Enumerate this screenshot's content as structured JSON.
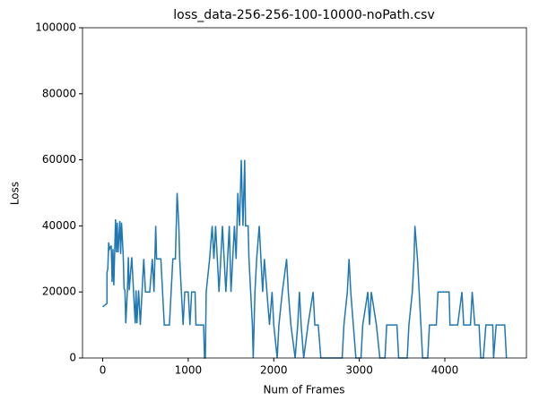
{
  "chart_data": {
    "type": "line",
    "title": "loss_data-256-256-100-10000-noPath.csv",
    "x_label": "Num of Frames",
    "y_label": "Loss",
    "x": [
      0,
      50,
      50,
      60,
      70,
      80,
      100,
      110,
      120,
      130,
      150,
      160,
      170,
      180,
      200,
      210,
      220,
      240,
      250,
      260,
      270,
      290,
      300,
      310,
      340,
      360,
      380,
      390,
      400,
      420,
      440,
      460,
      480,
      500,
      550,
      580,
      600,
      620,
      630,
      680,
      700,
      720,
      780,
      800,
      820,
      850,
      860,
      870,
      890,
      900,
      920,
      940,
      960,
      1000,
      1020,
      1040,
      1080,
      1090,
      1180,
      1190,
      1200,
      1210,
      1250,
      1280,
      1300,
      1320,
      1340,
      1360,
      1380,
      1400,
      1420,
      1440,
      1460,
      1480,
      1500,
      1520,
      1540,
      1560,
      1580,
      1600,
      1620,
      1640,
      1660,
      1670,
      1700,
      1710,
      1730,
      1750,
      1760,
      1780,
      1800,
      1830,
      1850,
      1870,
      1890,
      1920,
      1950,
      1980,
      2000,
      2040,
      2060,
      2100,
      2150,
      2170,
      2200,
      2250,
      2280,
      2300,
      2320,
      2350,
      2400,
      2460,
      2480,
      2520,
      2550,
      2800,
      2820,
      2860,
      2880,
      2900,
      2930,
      2960,
      3020,
      3040,
      3100,
      3120,
      3140,
      3200,
      3240,
      3300,
      3320,
      3440,
      3460,
      3560,
      3580,
      3620,
      3640,
      3650,
      3680,
      3700,
      3720,
      3740,
      3800,
      3820,
      3900,
      3920,
      4050,
      4060,
      4150,
      4200,
      4220,
      4300,
      4320,
      4350,
      4400,
      4420,
      4450,
      4480,
      4560,
      4570,
      4600,
      4700,
      4720
    ],
    "series": [
      {
        "color": "#1f77b4",
        "values": [
          15500,
          16500,
          26000,
          27000,
          35000,
          33000,
          34000,
          23000,
          33000,
          22000,
          42000,
          32000,
          41000,
          32000,
          41500,
          31500,
          41000,
          31000,
          21000,
          20500,
          10500,
          21000,
          30500,
          20500,
          30500,
          20500,
          10500,
          20500,
          10500,
          20500,
          10000,
          20000,
          30000,
          20000,
          20000,
          30000,
          20000,
          40000,
          30000,
          30000,
          20000,
          10000,
          10000,
          20000,
          30000,
          30000,
          40000,
          50000,
          40000,
          30000,
          20000,
          10000,
          20000,
          20000,
          10000,
          20000,
          20000,
          10000,
          10000,
          0,
          0,
          20000,
          30000,
          40000,
          30000,
          40000,
          30000,
          20000,
          30000,
          40000,
          30000,
          20000,
          30000,
          40000,
          20000,
          30000,
          40000,
          30000,
          50000,
          40000,
          60000,
          40000,
          60000,
          40000,
          40000,
          30000,
          20000,
          10000,
          0,
          20000,
          30000,
          40000,
          30000,
          20000,
          30000,
          20000,
          10000,
          20000,
          10000,
          0,
          10000,
          20000,
          30000,
          20000,
          10000,
          0,
          10000,
          20000,
          10000,
          0,
          10000,
          20000,
          10000,
          10000,
          0,
          0,
          10000,
          20000,
          30000,
          20000,
          10000,
          0,
          0,
          10000,
          20000,
          10000,
          20000,
          10000,
          0,
          0,
          10000,
          10000,
          0,
          0,
          10000,
          20000,
          30000,
          40000,
          30000,
          20000,
          10000,
          0,
          0,
          10000,
          10000,
          20000,
          20000,
          10000,
          10000,
          20000,
          10000,
          10000,
          20000,
          10000,
          10000,
          0,
          0,
          10000,
          10000,
          0,
          10000,
          10000,
          0
        ]
      }
    ],
    "xlim": [
      -236,
      4954
    ],
    "xticks": [
      0,
      1000,
      2000,
      3000,
      4000
    ],
    "ylim": [
      0,
      100000
    ],
    "yticks": [
      0,
      20000,
      40000,
      60000,
      80000,
      100000
    ]
  }
}
